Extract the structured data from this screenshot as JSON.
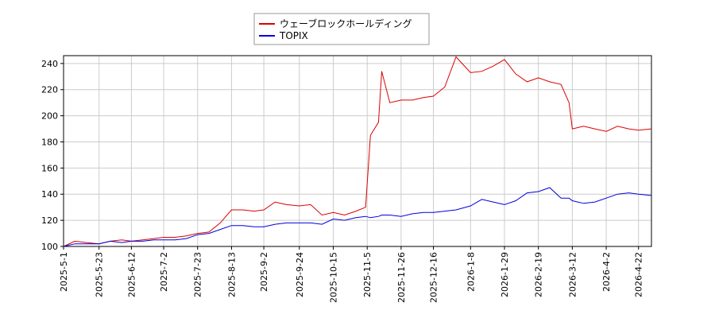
{
  "chart_data": {
    "type": "line",
    "x": [
      "2025-5-1",
      "2025-5-8",
      "2025-5-15",
      "2025-5-23",
      "2025-5-30",
      "2025-6-6",
      "2025-6-12",
      "2025-6-19",
      "2025-6-26",
      "2025-7-2",
      "2025-7-9",
      "2025-7-16",
      "2025-7-23",
      "2025-7-30",
      "2025-8-6",
      "2025-8-13",
      "2025-8-20",
      "2025-8-27",
      "2025-9-2",
      "2025-9-9",
      "2025-9-16",
      "2025-9-24",
      "2025-10-1",
      "2025-10-8",
      "2025-10-15",
      "2025-10-22",
      "2025-10-29",
      "2025-11-4",
      "2025-11-7",
      "2025-11-12",
      "2025-11-14",
      "2025-11-19",
      "2025-11-26",
      "2025-12-3",
      "2025-12-10",
      "2025-12-16",
      "2025-12-23",
      "2025-12-30",
      "2026-1-8",
      "2026-1-15",
      "2026-1-22",
      "2026-1-29",
      "2026-2-5",
      "2026-2-12",
      "2026-2-19",
      "2026-2-26",
      "2026-3-5",
      "2026-3-10",
      "2026-3-12",
      "2026-3-19",
      "2026-3-26",
      "2026-4-2",
      "2026-4-9",
      "2026-4-16",
      "2026-4-22",
      "2026-4-30"
    ],
    "series": [
      {
        "name": "ウェーブロックホールディング",
        "color": "#dd0000",
        "values": [
          100,
          104,
          103,
          102,
          104,
          105,
          104,
          105,
          106,
          107,
          107,
          108,
          110,
          111,
          118,
          128,
          128,
          127,
          128,
          134,
          132,
          131,
          132,
          124,
          126,
          124,
          127,
          130,
          185,
          195,
          234,
          210,
          212,
          212,
          214,
          215,
          222,
          245,
          233,
          234,
          238,
          243,
          232,
          226,
          229,
          226,
          224,
          210,
          190,
          192,
          190,
          188,
          192,
          190,
          189,
          190
        ]
      },
      {
        "name": "TOPIX",
        "color": "#0000dd",
        "values": [
          100,
          102,
          102,
          102,
          104,
          103,
          104,
          104,
          105,
          105,
          105,
          106,
          109,
          110,
          113,
          116,
          116,
          115,
          115,
          117,
          118,
          118,
          118,
          117,
          121,
          120,
          122,
          123,
          122,
          123,
          124,
          124,
          123,
          125,
          126,
          126,
          127,
          128,
          131,
          136,
          134,
          132,
          135,
          141,
          142,
          145,
          137,
          137,
          135,
          133,
          134,
          137,
          140,
          141,
          140,
          139
        ]
      }
    ],
    "xlim": [
      "2025-5-1",
      "2026-4-30"
    ],
    "xticks": [
      "2025-5-1",
      "2025-5-23",
      "2025-6-12",
      "2025-7-2",
      "2025-7-23",
      "2025-8-13",
      "2025-9-2",
      "2025-9-24",
      "2025-10-15",
      "2025-11-5",
      "2025-11-26",
      "2025-12-16",
      "2026-1-8",
      "2026-1-29",
      "2026-2-19",
      "2026-3-12",
      "2026-4-2",
      "2026-4-22"
    ],
    "ylim": [
      100,
      246
    ],
    "yticks": [
      100,
      120,
      140,
      160,
      180,
      200,
      220,
      240
    ],
    "grid": true
  }
}
